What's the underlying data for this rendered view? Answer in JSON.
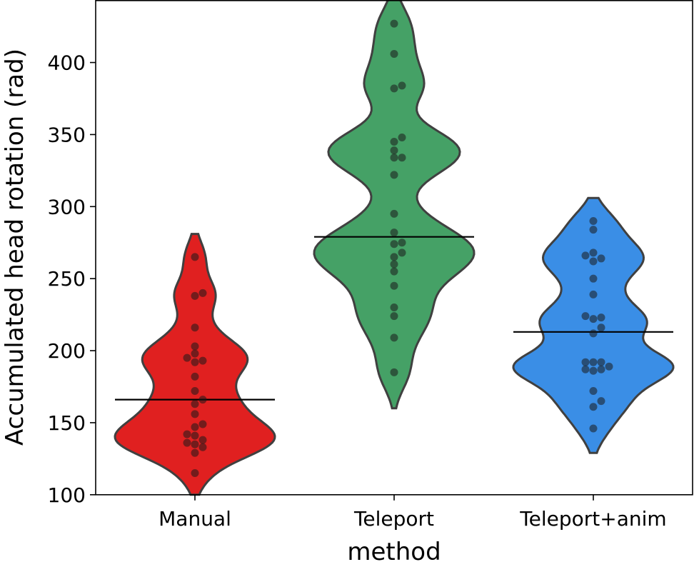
{
  "chart_data": {
    "type": "violin",
    "xlabel": "method",
    "ylabel": "Accumulated head rotation (rad)",
    "ylim": [
      100,
      443
    ],
    "yticks": [
      100,
      150,
      200,
      250,
      300,
      350,
      400
    ],
    "grid": false,
    "categories": [
      "Manual",
      "Teleport",
      "Teleport+anim"
    ],
    "series": [
      {
        "category": "Manual",
        "color": "#e02020",
        "median": 166,
        "range": [
          100,
          281
        ],
        "points": [
          115,
          129,
          133,
          135,
          136,
          138,
          141,
          142,
          147,
          149,
          156,
          163,
          166,
          172,
          182,
          192,
          193,
          195,
          198,
          203,
          216,
          238,
          240,
          265
        ]
      },
      {
        "category": "Teleport",
        "color": "#45a166",
        "median": 279,
        "range": [
          160,
          445
        ],
        "points": [
          185,
          209,
          224,
          230,
          245,
          255,
          260,
          265,
          268,
          274,
          275,
          282,
          295,
          322,
          334,
          334,
          339,
          345,
          348,
          382,
          384,
          406,
          427
        ]
      },
      {
        "category": "Teleport+anim",
        "color": "#3a8ee6",
        "median": 213,
        "range": [
          129,
          306
        ],
        "points": [
          146,
          161,
          165,
          172,
          186,
          187,
          187,
          189,
          192,
          192,
          192,
          212,
          216,
          222,
          223,
          224,
          239,
          250,
          262,
          264,
          266,
          268,
          284,
          290
        ]
      }
    ]
  }
}
